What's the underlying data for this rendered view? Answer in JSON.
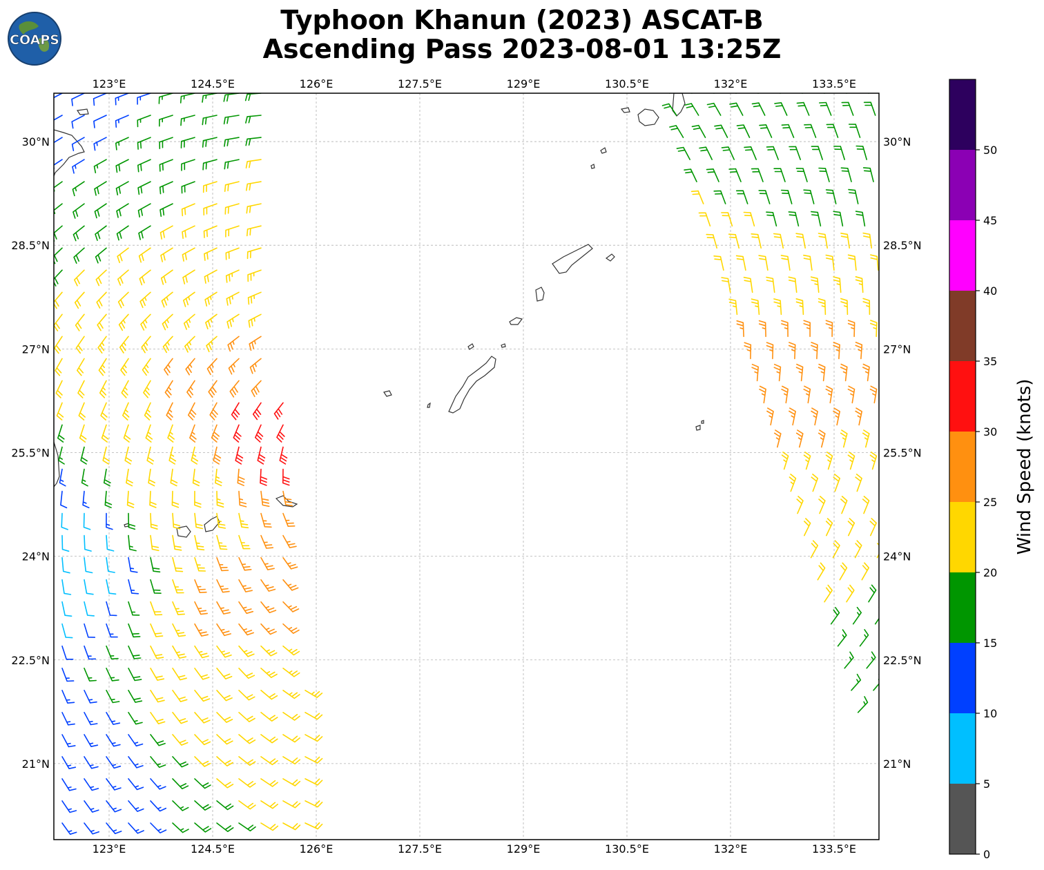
{
  "header": {
    "title_line1": "Typhoon Khanun (2023) ASCAT-B",
    "title_line2": "Ascending Pass 2023-08-01 13:25Z",
    "logo_text": "COAPS"
  },
  "map": {
    "lon_range": [
      122.2,
      134.15
    ],
    "lat_range": [
      19.9,
      30.7
    ],
    "lon_ticks": [
      "123°E",
      "124.5°E",
      "126°E",
      "127.5°E",
      "129°E",
      "130.5°E",
      "132°E",
      "133.5°E"
    ],
    "lon_tick_values": [
      123,
      124.5,
      126,
      127.5,
      129,
      130.5,
      132,
      133.5
    ],
    "lat_ticks": [
      "30°N",
      "28.5°N",
      "27°N",
      "25.5°N",
      "24°N",
      "22.5°N",
      "21°N"
    ],
    "lat_tick_values": [
      30,
      28.5,
      27,
      25.5,
      24,
      22.5,
      21
    ],
    "gridlines": true,
    "land_color": "#ffffff",
    "coast_color": "#333333"
  },
  "colorbar": {
    "label": "Wind Speed (knots)",
    "ticks": [
      "0",
      "5",
      "10",
      "15",
      "20",
      "25",
      "30",
      "35",
      "40",
      "45",
      "50"
    ],
    "tick_values": [
      0,
      5,
      10,
      15,
      20,
      25,
      30,
      35,
      40,
      45,
      50
    ],
    "range": [
      0,
      55
    ],
    "bins": [
      {
        "from": 0,
        "to": 5,
        "color": "#555555"
      },
      {
        "from": 5,
        "to": 10,
        "color": "#00bfff"
      },
      {
        "from": 10,
        "to": 15,
        "color": "#0040ff"
      },
      {
        "from": 15,
        "to": 20,
        "color": "#009600"
      },
      {
        "from": 20,
        "to": 25,
        "color": "#ffd700"
      },
      {
        "from": 25,
        "to": 30,
        "color": "#ff9010"
      },
      {
        "from": 30,
        "to": 35,
        "color": "#ff1010"
      },
      {
        "from": 35,
        "to": 40,
        "color": "#803b28"
      },
      {
        "from": 40,
        "to": 45,
        "color": "#ff00ff"
      },
      {
        "from": 45,
        "to": 50,
        "color": "#8b00b4"
      },
      {
        "from": 50,
        "to": 55,
        "color": "#2d005e"
      }
    ]
  },
  "chart_data": {
    "type": "wind-barb-swath",
    "swaths": [
      {
        "name": "west",
        "lon_left_top": 122.2,
        "lon_right_top": 125.2,
        "lon_left_bottom": 122.2,
        "lon_right_bottom": 126.0,
        "lat_top": 30.7,
        "lat_bottom": 19.9
      },
      {
        "name": "east",
        "lon_left_top": 131.0,
        "lon_right_top": 134.15,
        "lon_left_bottom": 133.8,
        "lon_right_bottom": 134.15,
        "lat_top": 30.7,
        "lat_bottom": 21.5
      }
    ],
    "wind_speed_samples_knots": [
      {
        "lat": 30.5,
        "lon": 122.5,
        "speed": 12
      },
      {
        "lat": 29.5,
        "lon": 123.5,
        "speed": 18
      },
      {
        "lat": 28.5,
        "lon": 124.5,
        "speed": 22
      },
      {
        "lat": 27.5,
        "lon": 124.8,
        "speed": 25
      },
      {
        "lat": 25.8,
        "lon": 125.2,
        "speed": 31
      },
      {
        "lat": 25.0,
        "lon": 124.0,
        "speed": 22
      },
      {
        "lat": 24.0,
        "lon": 122.3,
        "speed": 8
      },
      {
        "lat": 23.3,
        "lon": 124.8,
        "speed": 26
      },
      {
        "lat": 22.0,
        "lon": 124.5,
        "speed": 22
      },
      {
        "lat": 21.0,
        "lon": 122.5,
        "speed": 13
      },
      {
        "lat": 29.5,
        "lon": 132.5,
        "speed": 18
      },
      {
        "lat": 28.5,
        "lon": 132.0,
        "speed": 21
      },
      {
        "lat": 26.5,
        "lon": 132.8,
        "speed": 26
      },
      {
        "lat": 24.0,
        "lon": 133.5,
        "speed": 22
      },
      {
        "lat": 22.5,
        "lon": 133.9,
        "speed": 17
      }
    ]
  }
}
